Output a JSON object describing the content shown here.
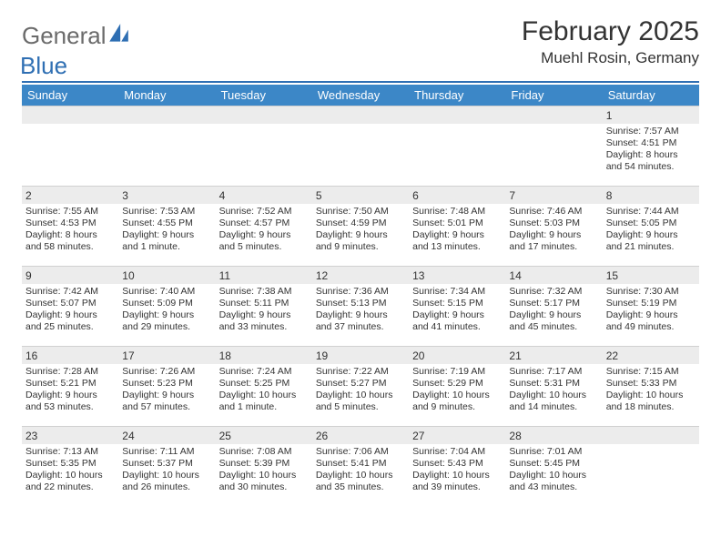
{
  "brand": {
    "general": "General",
    "blue": "Blue"
  },
  "title": {
    "monthYear": "February 2025",
    "location": "Muehl Rosin, Germany"
  },
  "colors": {
    "accent": "#3c87c7",
    "rule": "#2f6fb3",
    "dayBg": "#ececec",
    "text": "#333333",
    "logoGray": "#6b6b6b",
    "logoBlue": "#2f6fb3"
  },
  "weekdays": [
    "Sunday",
    "Monday",
    "Tuesday",
    "Wednesday",
    "Thursday",
    "Friday",
    "Saturday"
  ],
  "weeks": [
    [
      {
        "n": "",
        "sr": "",
        "ss": "",
        "dl": ""
      },
      {
        "n": "",
        "sr": "",
        "ss": "",
        "dl": ""
      },
      {
        "n": "",
        "sr": "",
        "ss": "",
        "dl": ""
      },
      {
        "n": "",
        "sr": "",
        "ss": "",
        "dl": ""
      },
      {
        "n": "",
        "sr": "",
        "ss": "",
        "dl": ""
      },
      {
        "n": "",
        "sr": "",
        "ss": "",
        "dl": ""
      },
      {
        "n": "1",
        "sr": "Sunrise: 7:57 AM",
        "ss": "Sunset: 4:51 PM",
        "dl": "Daylight: 8 hours and 54 minutes."
      }
    ],
    [
      {
        "n": "2",
        "sr": "Sunrise: 7:55 AM",
        "ss": "Sunset: 4:53 PM",
        "dl": "Daylight: 8 hours and 58 minutes."
      },
      {
        "n": "3",
        "sr": "Sunrise: 7:53 AM",
        "ss": "Sunset: 4:55 PM",
        "dl": "Daylight: 9 hours and 1 minute."
      },
      {
        "n": "4",
        "sr": "Sunrise: 7:52 AM",
        "ss": "Sunset: 4:57 PM",
        "dl": "Daylight: 9 hours and 5 minutes."
      },
      {
        "n": "5",
        "sr": "Sunrise: 7:50 AM",
        "ss": "Sunset: 4:59 PM",
        "dl": "Daylight: 9 hours and 9 minutes."
      },
      {
        "n": "6",
        "sr": "Sunrise: 7:48 AM",
        "ss": "Sunset: 5:01 PM",
        "dl": "Daylight: 9 hours and 13 minutes."
      },
      {
        "n": "7",
        "sr": "Sunrise: 7:46 AM",
        "ss": "Sunset: 5:03 PM",
        "dl": "Daylight: 9 hours and 17 minutes."
      },
      {
        "n": "8",
        "sr": "Sunrise: 7:44 AM",
        "ss": "Sunset: 5:05 PM",
        "dl": "Daylight: 9 hours and 21 minutes."
      }
    ],
    [
      {
        "n": "9",
        "sr": "Sunrise: 7:42 AM",
        "ss": "Sunset: 5:07 PM",
        "dl": "Daylight: 9 hours and 25 minutes."
      },
      {
        "n": "10",
        "sr": "Sunrise: 7:40 AM",
        "ss": "Sunset: 5:09 PM",
        "dl": "Daylight: 9 hours and 29 minutes."
      },
      {
        "n": "11",
        "sr": "Sunrise: 7:38 AM",
        "ss": "Sunset: 5:11 PM",
        "dl": "Daylight: 9 hours and 33 minutes."
      },
      {
        "n": "12",
        "sr": "Sunrise: 7:36 AM",
        "ss": "Sunset: 5:13 PM",
        "dl": "Daylight: 9 hours and 37 minutes."
      },
      {
        "n": "13",
        "sr": "Sunrise: 7:34 AM",
        "ss": "Sunset: 5:15 PM",
        "dl": "Daylight: 9 hours and 41 minutes."
      },
      {
        "n": "14",
        "sr": "Sunrise: 7:32 AM",
        "ss": "Sunset: 5:17 PM",
        "dl": "Daylight: 9 hours and 45 minutes."
      },
      {
        "n": "15",
        "sr": "Sunrise: 7:30 AM",
        "ss": "Sunset: 5:19 PM",
        "dl": "Daylight: 9 hours and 49 minutes."
      }
    ],
    [
      {
        "n": "16",
        "sr": "Sunrise: 7:28 AM",
        "ss": "Sunset: 5:21 PM",
        "dl": "Daylight: 9 hours and 53 minutes."
      },
      {
        "n": "17",
        "sr": "Sunrise: 7:26 AM",
        "ss": "Sunset: 5:23 PM",
        "dl": "Daylight: 9 hours and 57 minutes."
      },
      {
        "n": "18",
        "sr": "Sunrise: 7:24 AM",
        "ss": "Sunset: 5:25 PM",
        "dl": "Daylight: 10 hours and 1 minute."
      },
      {
        "n": "19",
        "sr": "Sunrise: 7:22 AM",
        "ss": "Sunset: 5:27 PM",
        "dl": "Daylight: 10 hours and 5 minutes."
      },
      {
        "n": "20",
        "sr": "Sunrise: 7:19 AM",
        "ss": "Sunset: 5:29 PM",
        "dl": "Daylight: 10 hours and 9 minutes."
      },
      {
        "n": "21",
        "sr": "Sunrise: 7:17 AM",
        "ss": "Sunset: 5:31 PM",
        "dl": "Daylight: 10 hours and 14 minutes."
      },
      {
        "n": "22",
        "sr": "Sunrise: 7:15 AM",
        "ss": "Sunset: 5:33 PM",
        "dl": "Daylight: 10 hours and 18 minutes."
      }
    ],
    [
      {
        "n": "23",
        "sr": "Sunrise: 7:13 AM",
        "ss": "Sunset: 5:35 PM",
        "dl": "Daylight: 10 hours and 22 minutes."
      },
      {
        "n": "24",
        "sr": "Sunrise: 7:11 AM",
        "ss": "Sunset: 5:37 PM",
        "dl": "Daylight: 10 hours and 26 minutes."
      },
      {
        "n": "25",
        "sr": "Sunrise: 7:08 AM",
        "ss": "Sunset: 5:39 PM",
        "dl": "Daylight: 10 hours and 30 minutes."
      },
      {
        "n": "26",
        "sr": "Sunrise: 7:06 AM",
        "ss": "Sunset: 5:41 PM",
        "dl": "Daylight: 10 hours and 35 minutes."
      },
      {
        "n": "27",
        "sr": "Sunrise: 7:04 AM",
        "ss": "Sunset: 5:43 PM",
        "dl": "Daylight: 10 hours and 39 minutes."
      },
      {
        "n": "28",
        "sr": "Sunrise: 7:01 AM",
        "ss": "Sunset: 5:45 PM",
        "dl": "Daylight: 10 hours and 43 minutes."
      },
      {
        "n": "",
        "sr": "",
        "ss": "",
        "dl": ""
      }
    ]
  ]
}
